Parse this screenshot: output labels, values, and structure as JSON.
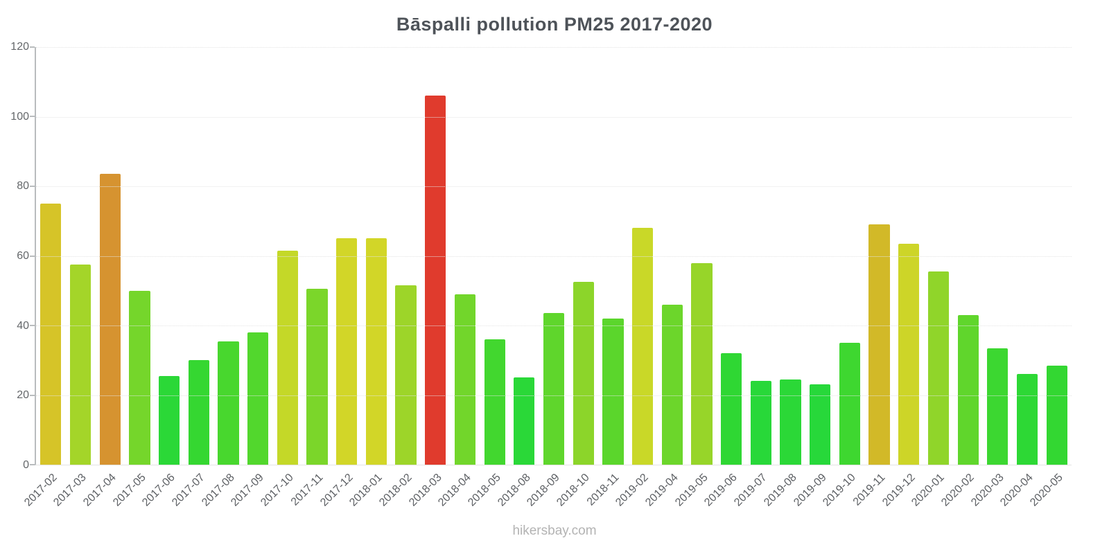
{
  "chart_data": {
    "type": "bar",
    "title": "Bāspalli pollution PM25 2017-2020",
    "xlabel": "",
    "ylabel": "",
    "ylim": [
      0,
      120
    ],
    "yticks": [
      0,
      20,
      40,
      60,
      80,
      100,
      120
    ],
    "grid": "horizontal-dotted",
    "legend_position": "none",
    "categories": [
      "2017-02",
      "2017-03",
      "2017-04",
      "2017-05",
      "2017-06",
      "2017-07",
      "2017-08",
      "2017-09",
      "2017-10",
      "2017-11",
      "2017-12",
      "2018-01",
      "2018-02",
      "2018-03",
      "2018-04",
      "2018-05",
      "2018-08",
      "2018-09",
      "2018-10",
      "2018-11",
      "2019-02",
      "2019-04",
      "2019-05",
      "2019-06",
      "2019-07",
      "2019-08",
      "2019-09",
      "2019-10",
      "2019-11",
      "2019-12",
      "2020-01",
      "2020-02",
      "2020-03",
      "2020-04",
      "2020-05"
    ],
    "values": [
      75,
      57.5,
      83.5,
      50,
      25.5,
      30,
      35.5,
      38,
      61.5,
      50.5,
      65,
      65,
      51.5,
      106,
      49,
      36,
      25,
      43.5,
      52.5,
      42,
      68,
      46,
      58,
      32,
      24,
      24.5,
      23,
      35,
      69,
      63.5,
      55.5,
      43,
      33.5,
      26,
      28.5
    ],
    "colors": [
      "#d6c428",
      "#a4d529",
      "#d69330",
      "#75d62b",
      "#2bd837",
      "#35d731",
      "#48d72e",
      "#52d72d",
      "#c4d828",
      "#7bd62a",
      "#d2d628",
      "#d2d628",
      "#9dd529",
      "#e03b2d",
      "#72d62b",
      "#42d72f",
      "#2ad838",
      "#5fd62c",
      "#8cd52a",
      "#5bd62c",
      "#c9d828",
      "#6cd62b",
      "#97d529",
      "#2fd733",
      "#28d839",
      "#2bd837",
      "#27d83a",
      "#3ed730",
      "#d2b928",
      "#cdd528",
      "#90d52a",
      "#60d62c",
      "#3cd731",
      "#2dd835",
      "#33d732"
    ]
  },
  "footer": {
    "watermark": "hikersbay.com"
  }
}
